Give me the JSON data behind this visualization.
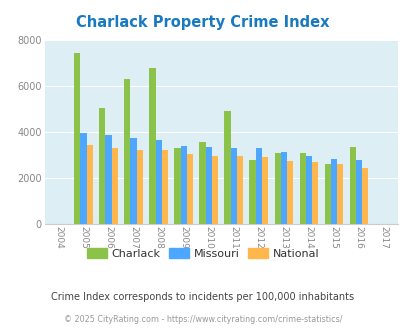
{
  "title": "Charlack Property Crime Index",
  "years": [
    2004,
    2005,
    2006,
    2007,
    2008,
    2009,
    2010,
    2011,
    2012,
    2013,
    2014,
    2015,
    2016,
    2017
  ],
  "charlack": [
    null,
    7400,
    5050,
    6300,
    6750,
    3300,
    3550,
    4900,
    2800,
    3100,
    3100,
    2600,
    3350,
    null
  ],
  "missouri": [
    null,
    3950,
    3850,
    3750,
    3650,
    3400,
    3350,
    3300,
    3300,
    3150,
    2950,
    2850,
    2800,
    null
  ],
  "national": [
    null,
    3450,
    3300,
    3200,
    3200,
    3050,
    2950,
    2950,
    2900,
    2750,
    2700,
    2600,
    2450,
    null
  ],
  "charlack_color": "#8bc34a",
  "missouri_color": "#4da6ff",
  "national_color": "#ffb74d",
  "plot_bg_color": "#ddeef5",
  "title_color": "#1a7abf",
  "ylim": [
    0,
    8000
  ],
  "yticks": [
    0,
    2000,
    4000,
    6000,
    8000
  ],
  "subtitle": "Crime Index corresponds to incidents per 100,000 inhabitants",
  "footer": "© 2025 CityRating.com - https://www.cityrating.com/crime-statistics/",
  "subtitle_color": "#444444",
  "footer_color": "#999999",
  "bar_width": 0.25
}
